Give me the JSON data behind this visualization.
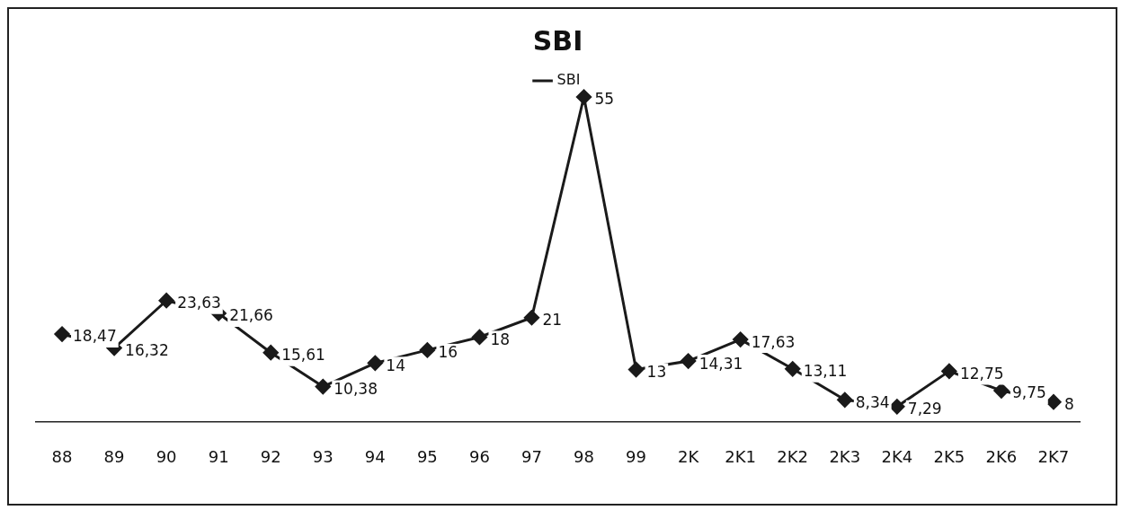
{
  "chart_data": {
    "type": "line",
    "title": "SBI",
    "categories": [
      "88",
      "89",
      "90",
      "91",
      "92",
      "93",
      "94",
      "95",
      "96",
      "97",
      "98",
      "99",
      "2K",
      "2K1",
      "2K2",
      "2K3",
      "2K4",
      "2K5",
      "2K6",
      "2K7"
    ],
    "series": [
      {
        "name": "SBI",
        "color": "#1a1a1a",
        "values": [
          18.47,
          16.32,
          23.63,
          21.66,
          15.61,
          10.38,
          14,
          16,
          18,
          21,
          55,
          13,
          14.31,
          17.63,
          13.11,
          8.34,
          7.29,
          12.75,
          9.75,
          8
        ],
        "value_labels": [
          "18,47",
          "16,32",
          "23,63",
          "21,66",
          "15,61",
          "10,38",
          "14",
          "16",
          "18",
          "21",
          "55",
          "13",
          "14,31",
          "17,63",
          "13,11",
          "8,34",
          "7,29",
          "12,75",
          "9,75",
          "8"
        ]
      }
    ],
    "legend": "top",
    "marker": "diamond",
    "line_style": "solid",
    "grid": false
  }
}
